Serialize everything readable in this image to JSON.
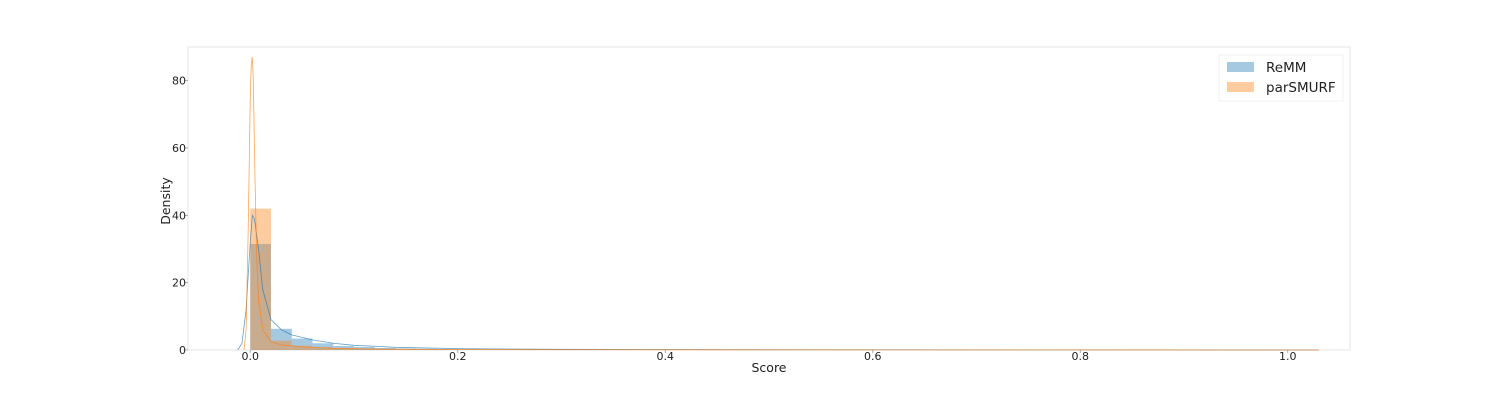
{
  "chart_data": {
    "type": "histogram",
    "xlabel": "Score",
    "ylabel": "Density",
    "xlim": [
      -0.06,
      1.06
    ],
    "ylim": [
      0,
      90
    ],
    "x_ticks": [
      0.0,
      0.2,
      0.4,
      0.6,
      0.8,
      1.0
    ],
    "x_tick_labels": [
      "0.0",
      "0.2",
      "0.4",
      "0.6",
      "0.8",
      "1.0"
    ],
    "y_ticks": [
      0,
      20,
      40,
      60,
      80
    ],
    "y_tick_labels": [
      "0",
      "20",
      "40",
      "60",
      "80"
    ],
    "grid": false,
    "legend_position": "top-right",
    "bin_edges": [
      0.0,
      0.02,
      0.04,
      0.06,
      0.08,
      0.1,
      0.12,
      0.14,
      0.16,
      0.18,
      0.2,
      0.22,
      0.24,
      0.26,
      0.28,
      0.3,
      0.32,
      0.34,
      0.36,
      0.38,
      0.4,
      0.42,
      0.44,
      0.46,
      0.48,
      0.5,
      0.52,
      0.54,
      0.56,
      0.58,
      0.6,
      0.62,
      0.64,
      0.66,
      0.68,
      0.7,
      0.72,
      0.74,
      0.76,
      0.78,
      0.8,
      0.82,
      0.84,
      0.86,
      0.88,
      0.9,
      0.92,
      0.94,
      0.96,
      0.98,
      1.0
    ],
    "series": [
      {
        "name": "ReMM",
        "color": "#1f77b4",
        "histogram_density": [
          31.5,
          6.3,
          3.4,
          2.0,
          1.2,
          0.9,
          0.6,
          0.45,
          0.35,
          0.25,
          0.2,
          0.15,
          0.12,
          0.1,
          0.08,
          0.07,
          0.06,
          0.05,
          0.05,
          0.04,
          0.04,
          0.03,
          0.03,
          0.03,
          0.03,
          0.02,
          0.02,
          0.02,
          0.02,
          0.02,
          0.02,
          0.02,
          0.02,
          0.02,
          0.02,
          0.02,
          0.02,
          0.02,
          0.02,
          0.02,
          0.02,
          0.02,
          0.02,
          0.02,
          0.02,
          0.02,
          0.02,
          0.02,
          0.02,
          0.02
        ],
        "kde": {
          "x": [
            -0.012,
            -0.008,
            -0.004,
            0.0,
            0.002,
            0.004,
            0.008,
            0.012,
            0.02,
            0.03,
            0.04,
            0.06,
            0.08,
            0.1,
            0.14,
            0.2,
            0.3,
            0.5,
            0.8,
            1.03
          ],
          "y": [
            0,
            2,
            12,
            32,
            40,
            39,
            30,
            18,
            9,
            6,
            4.5,
            3,
            2,
            1.4,
            0.8,
            0.4,
            0.2,
            0.08,
            0.04,
            0
          ]
        }
      },
      {
        "name": "parSMURF",
        "color": "#ff7f0e",
        "histogram_density": [
          42.0,
          2.8,
          1.3,
          0.8,
          0.6,
          0.45,
          0.35,
          0.3,
          0.25,
          0.2,
          0.18,
          0.15,
          0.13,
          0.12,
          0.1,
          0.1,
          0.09,
          0.08,
          0.08,
          0.07,
          0.07,
          0.06,
          0.06,
          0.06,
          0.05,
          0.05,
          0.05,
          0.05,
          0.05,
          0.04,
          0.04,
          0.04,
          0.04,
          0.04,
          0.04,
          0.04,
          0.04,
          0.03,
          0.03,
          0.03,
          0.03,
          0.03,
          0.03,
          0.03,
          0.03,
          0.03,
          0.03,
          0.03,
          0.03,
          0.03
        ],
        "kde": {
          "x": [
            -0.006,
            -0.004,
            -0.002,
            0.0,
            0.001,
            0.002,
            0.003,
            0.004,
            0.006,
            0.008,
            0.012,
            0.02,
            0.03,
            0.05,
            0.08,
            0.12,
            0.2,
            0.4,
            0.7,
            1.03
          ],
          "y": [
            0,
            6,
            35,
            75,
            85,
            87,
            80,
            60,
            30,
            15,
            6,
            2.5,
            1.5,
            0.9,
            0.5,
            0.3,
            0.15,
            0.06,
            0.03,
            0
          ]
        }
      }
    ]
  }
}
